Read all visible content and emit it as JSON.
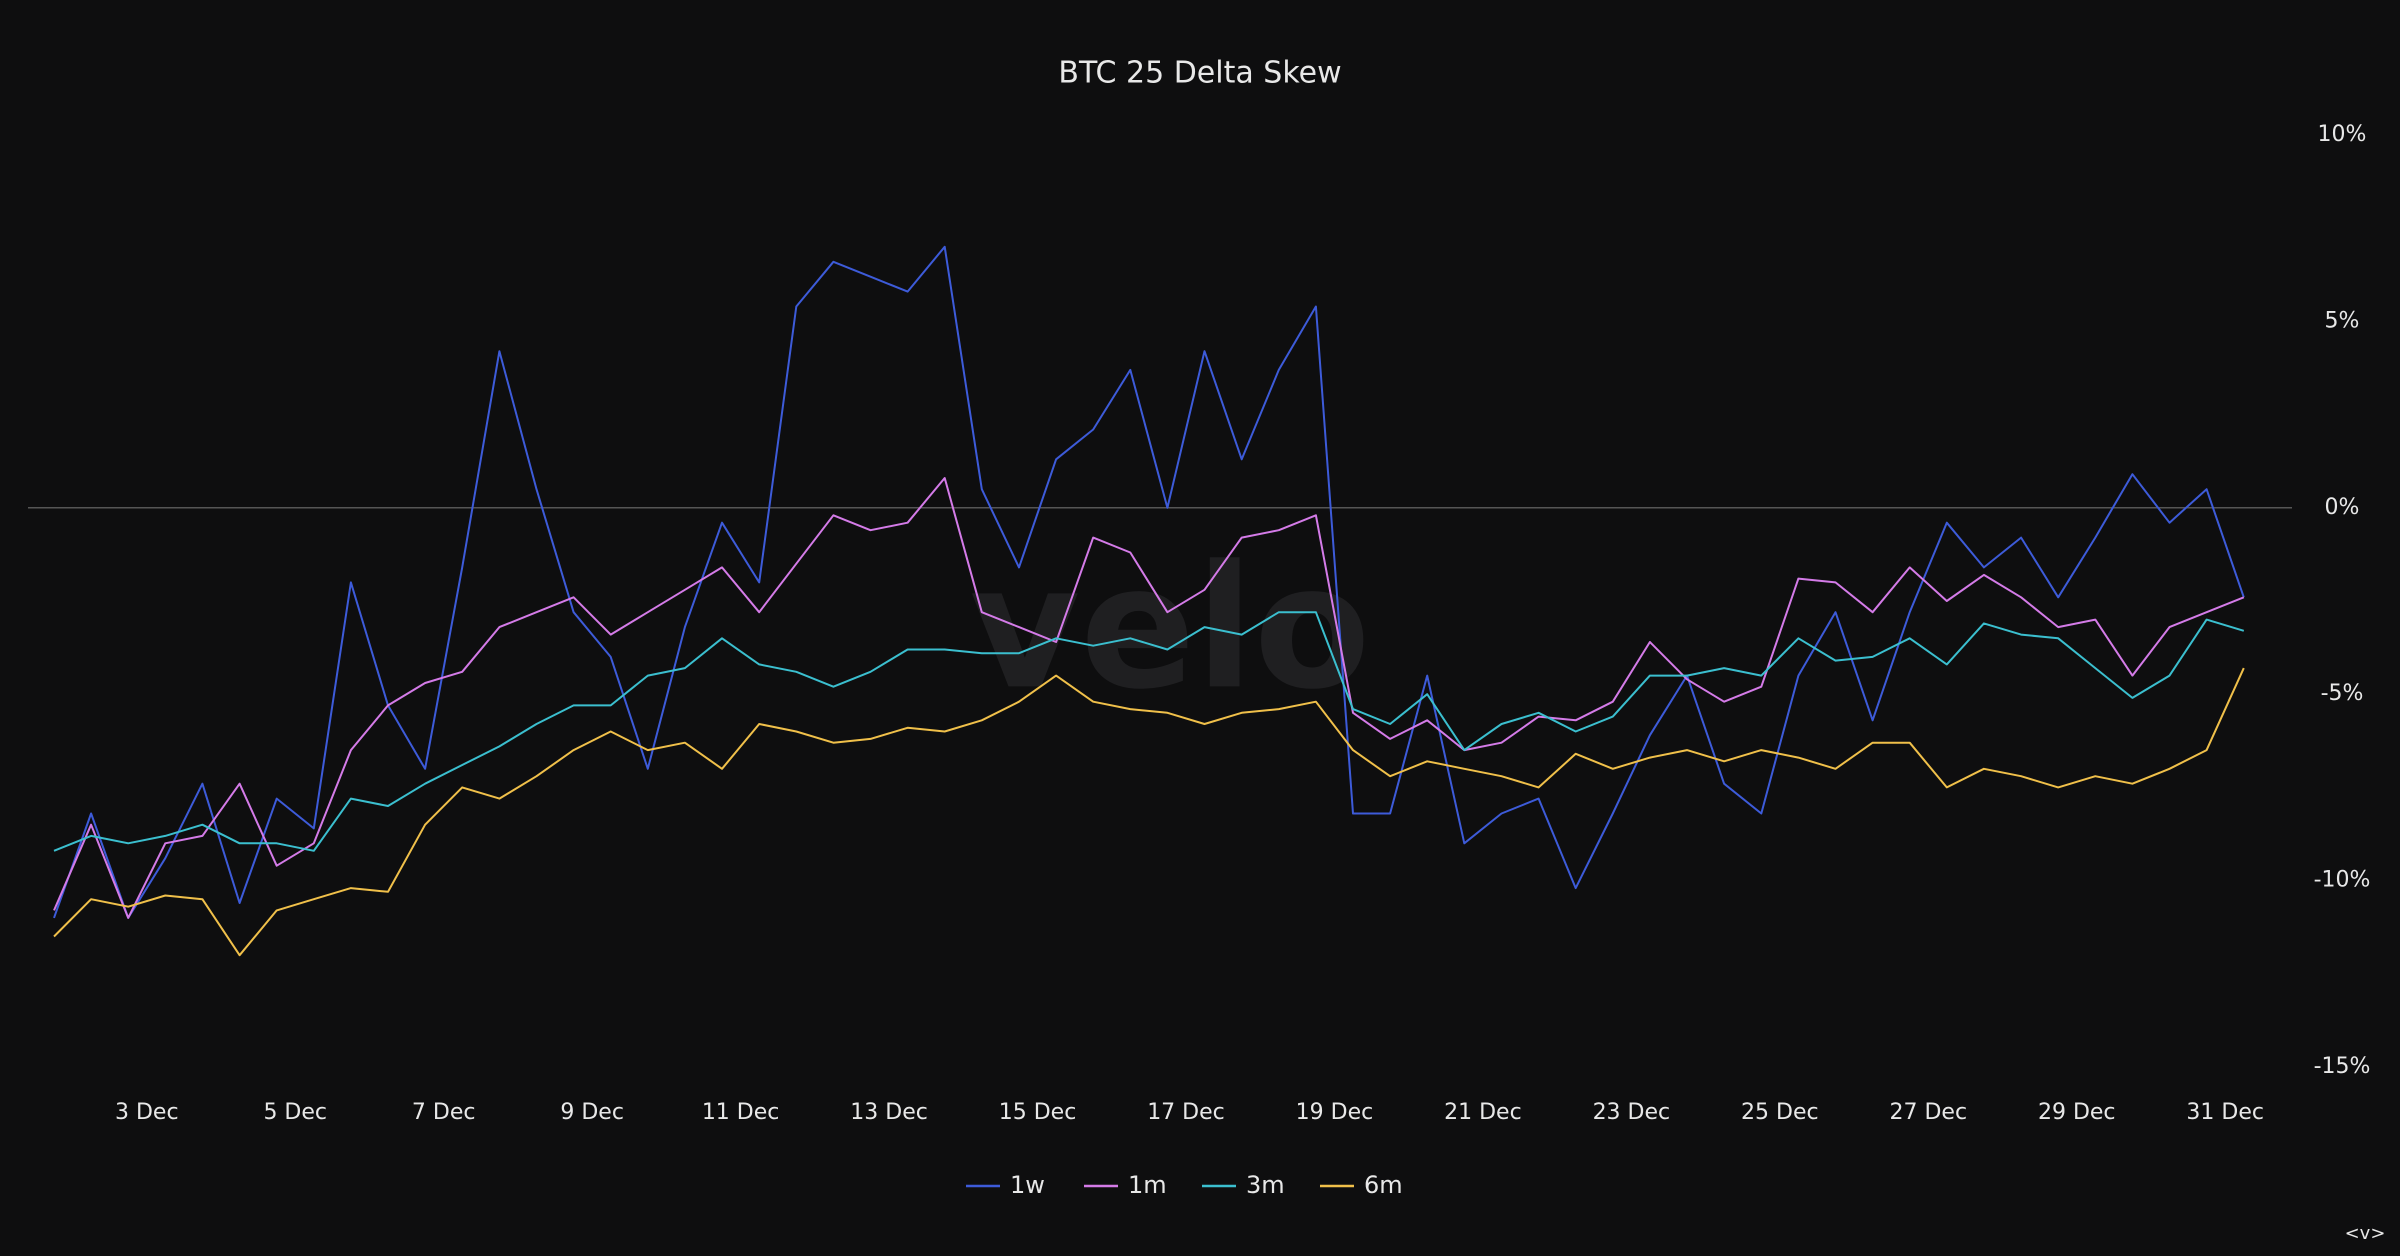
{
  "chart_data": {
    "type": "line",
    "title": "BTC 25 Delta Skew",
    "watermark": "velo",
    "corner_text": "<v>",
    "x": [
      1.75,
      2.25,
      2.75,
      3.25,
      3.75,
      4.25,
      4.75,
      5.25,
      5.75,
      6.25,
      6.75,
      7.25,
      7.75,
      8.25,
      8.75,
      9.25,
      9.75,
      10.25,
      10.75,
      11.25,
      11.75,
      12.25,
      12.75,
      13.25,
      13.75,
      14.25,
      14.75,
      15.25,
      15.75,
      16.25,
      16.75,
      17.25,
      17.75,
      18.25,
      18.75,
      19.25,
      19.75,
      20.25,
      20.75,
      21.25,
      21.75,
      22.25,
      22.75,
      23.25,
      23.75,
      24.25,
      24.75,
      25.25,
      25.75,
      26.25,
      26.75,
      27.25,
      27.75,
      28.25,
      28.75,
      29.25,
      29.75,
      30.25,
      30.75,
      31.25
    ],
    "xlim": [
      1.4,
      31.9
    ],
    "xticks": [
      {
        "value": 3,
        "label": "3 Dec"
      },
      {
        "value": 5,
        "label": "5 Dec"
      },
      {
        "value": 7,
        "label": "7 Dec"
      },
      {
        "value": 9,
        "label": "9 Dec"
      },
      {
        "value": 11,
        "label": "11 Dec"
      },
      {
        "value": 13,
        "label": "13 Dec"
      },
      {
        "value": 15,
        "label": "15 Dec"
      },
      {
        "value": 17,
        "label": "17 Dec"
      },
      {
        "value": 19,
        "label": "19 Dec"
      },
      {
        "value": 21,
        "label": "21 Dec"
      },
      {
        "value": 23,
        "label": "23 Dec"
      },
      {
        "value": 25,
        "label": "25 Dec"
      },
      {
        "value": 27,
        "label": "27 Dec"
      },
      {
        "value": 29,
        "label": "29 Dec"
      },
      {
        "value": 31,
        "label": "31 Dec"
      }
    ],
    "ylim": [
      -15,
      10
    ],
    "yticks": [
      {
        "value": 10,
        "label": "10%"
      },
      {
        "value": 5,
        "label": "5%"
      },
      {
        "value": 0,
        "label": "0%"
      },
      {
        "value": -5,
        "label": "-5%"
      },
      {
        "value": -10,
        "label": "-10%"
      },
      {
        "value": -15,
        "label": "-15%"
      }
    ],
    "y_axis_side": "right",
    "grid": false,
    "zero_line": true,
    "legend": "bottom",
    "series": [
      {
        "name": "1w",
        "color": "#3d5bd9",
        "values": [
          -11,
          -8.2,
          -11,
          -9.4,
          -7.4,
          -10.6,
          -7.8,
          -8.6,
          -2,
          -5.3,
          -7,
          -1.6,
          4.2,
          0.5,
          -2.8,
          -4,
          -7,
          -3.2,
          -0.4,
          -2,
          5.4,
          6.6,
          6.2,
          5.8,
          7,
          0.5,
          -1.6,
          1.3,
          2.1,
          3.7,
          0,
          4.2,
          1.3,
          3.7,
          5.4,
          -8.2,
          -8.2,
          -4.5,
          -9,
          -8.2,
          -7.8,
          -10.2,
          -8.2,
          -6.1,
          -4.5,
          -7.4,
          -8.2,
          -4.5,
          -2.8,
          -5.7,
          -2.8,
          -0.4,
          -1.6,
          -0.8,
          -2.4,
          -0.8,
          0.9,
          -0.4,
          0.5,
          -2.4
        ]
      },
      {
        "name": "1m",
        "color": "#d47be8",
        "values": [
          -10.8,
          -8.5,
          -11,
          -9,
          -8.8,
          -7.4,
          -9.6,
          -9,
          -6.5,
          -5.3,
          -4.7,
          -4.4,
          -3.2,
          -2.8,
          -2.4,
          -3.4,
          -2.8,
          -2.2,
          -1.6,
          -2.8,
          -1.5,
          -0.2,
          -0.6,
          -0.4,
          0.8,
          -2.8,
          -3.2,
          -3.6,
          -0.8,
          -1.2,
          -2.8,
          -2.2,
          -0.8,
          -0.6,
          -0.2,
          -5.5,
          -6.2,
          -5.7,
          -6.5,
          -6.3,
          -5.6,
          -5.7,
          -5.2,
          -3.6,
          -4.6,
          -5.2,
          -4.8,
          -1.9,
          -2,
          -2.8,
          -1.6,
          -2.5,
          -1.8,
          -2.4,
          -3.2,
          -3,
          -4.5,
          -3.2,
          -2.8,
          -2.4
        ]
      },
      {
        "name": "3m",
        "color": "#3bbfcf",
        "values": [
          -9.2,
          -8.8,
          -9,
          -8.8,
          -8.5,
          -9,
          -9,
          -9.2,
          -7.8,
          -8,
          -7.4,
          -6.9,
          -6.4,
          -5.8,
          -5.3,
          -5.3,
          -4.5,
          -4.3,
          -3.5,
          -4.2,
          -4.4,
          -4.8,
          -4.4,
          -3.8,
          -3.8,
          -3.9,
          -3.9,
          -3.5,
          -3.7,
          -3.5,
          -3.8,
          -3.2,
          -3.4,
          -2.8,
          -2.8,
          -5.4,
          -5.8,
          -5,
          -6.5,
          -5.8,
          -5.5,
          -6,
          -5.6,
          -4.5,
          -4.5,
          -4.3,
          -4.5,
          -3.5,
          -4.1,
          -4,
          -3.5,
          -4.2,
          -3.1,
          -3.4,
          -3.5,
          -4.3,
          -5.1,
          -4.5,
          -3,
          -3.3
        ]
      },
      {
        "name": "6m",
        "color": "#f0c04a",
        "values": [
          -11.5,
          -10.5,
          -10.7,
          -10.4,
          -10.5,
          -12,
          -10.8,
          -10.5,
          -10.2,
          -10.3,
          -8.5,
          -7.5,
          -7.8,
          -7.2,
          -6.5,
          -6,
          -6.5,
          -6.3,
          -7,
          -5.8,
          -6,
          -6.3,
          -6.2,
          -5.9,
          -6,
          -5.7,
          -5.2,
          -4.5,
          -5.2,
          -5.4,
          -5.5,
          -5.8,
          -5.5,
          -5.4,
          -5.2,
          -6.5,
          -7.2,
          -6.8,
          -7,
          -7.2,
          -7.5,
          -6.6,
          -7,
          -6.7,
          -6.5,
          -6.8,
          -6.5,
          -6.7,
          -7,
          -6.3,
          -6.3,
          -7.5,
          -7,
          -7.2,
          -7.5,
          -7.2,
          -7.4,
          -7,
          -6.5,
          -4.3
        ]
      }
    ]
  }
}
